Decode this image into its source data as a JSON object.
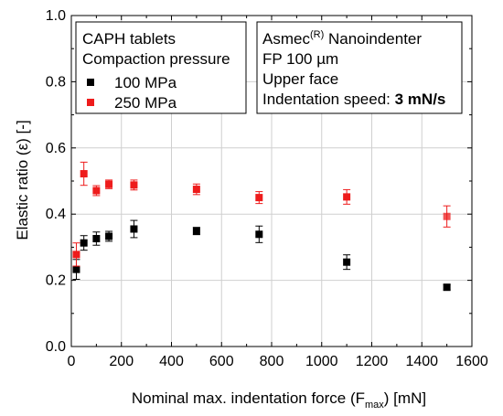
{
  "chart_data": {
    "type": "scatter",
    "xlabel": {
      "prefix": "Nominal max. indentation force (F",
      "sub": "max",
      "suffix": ") [mN]"
    },
    "ylabel": "Elastic ratio (ε) [-]",
    "xlim": [
      0,
      1600
    ],
    "ylim": [
      0.0,
      1.0
    ],
    "xticks": [
      0,
      200,
      400,
      600,
      800,
      1000,
      1200,
      1400,
      1600
    ],
    "yticks": [
      "0.0",
      "0.2",
      "0.4",
      "0.6",
      "0.8",
      "1.0"
    ],
    "grid": true,
    "series": [
      {
        "name": "100 MPa",
        "color": "#000000",
        "points": [
          {
            "x": 20,
            "y": 0.233,
            "err": 0.03
          },
          {
            "x": 50,
            "y": 0.313,
            "err": 0.022
          },
          {
            "x": 100,
            "y": 0.326,
            "err": 0.02
          },
          {
            "x": 150,
            "y": 0.333,
            "err": 0.015
          },
          {
            "x": 250,
            "y": 0.355,
            "err": 0.026
          },
          {
            "x": 500,
            "y": 0.349,
            "err": 0.011
          },
          {
            "x": 750,
            "y": 0.339,
            "err": 0.025
          },
          {
            "x": 1100,
            "y": 0.255,
            "err": 0.022
          },
          {
            "x": 1500,
            "y": 0.179,
            "err": 0.008
          }
        ]
      },
      {
        "name": "250 MPa",
        "color": "#ee1c1c",
        "points": [
          {
            "x": 20,
            "y": 0.278,
            "err": 0.035
          },
          {
            "x": 50,
            "y": 0.522,
            "err": 0.035
          },
          {
            "x": 100,
            "y": 0.471,
            "err": 0.015
          },
          {
            "x": 150,
            "y": 0.49,
            "err": 0.013
          },
          {
            "x": 250,
            "y": 0.488,
            "err": 0.015
          },
          {
            "x": 500,
            "y": 0.475,
            "err": 0.016
          },
          {
            "x": 750,
            "y": 0.45,
            "err": 0.018
          },
          {
            "x": 1100,
            "y": 0.452,
            "err": 0.022
          },
          {
            "x": 1500,
            "y": 0.393,
            "err": 0.032
          }
        ]
      }
    ],
    "legend_box": {
      "lines": [
        "CAPH tablets",
        "Compaction pressure"
      ],
      "placement": "top-left"
    },
    "info_box": {
      "title_prefix": "Asmec",
      "title_sup": "(R)",
      "title_suffix": " Nanoindenter",
      "line2": "FP 100 µm",
      "line3": "Upper face",
      "line4_prefix": "Indentation speed: ",
      "line4_bold": "3 mN/s",
      "placement": "top-right"
    }
  }
}
